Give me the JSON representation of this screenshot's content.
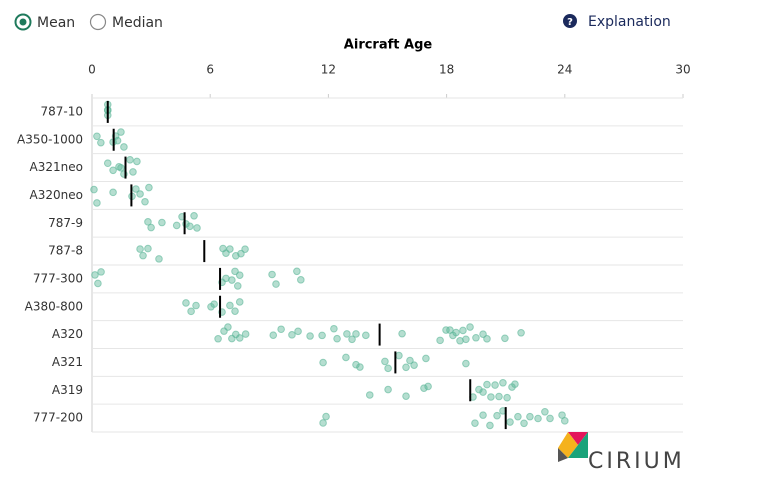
{
  "controls": {
    "options": [
      "Mean",
      "Median"
    ],
    "selected": "Mean",
    "explanation": "Explanation"
  },
  "logo": "CIRIUM",
  "chart_data": {
    "type": "strip",
    "x_label": "Aircraft Age",
    "xlim": [
      0,
      30
    ],
    "xticks": [
      0,
      6,
      12,
      18,
      24,
      30
    ],
    "grid": true,
    "color": "#5bb597",
    "mean_color": "#000000",
    "categories": [
      "787-10",
      "A350-1000",
      "A321neo",
      "A320neo",
      "787-9",
      "787-8",
      "777-300",
      "A380-800",
      "A320",
      "A321",
      "A319",
      "777-200"
    ],
    "means": [
      0.8,
      1.1,
      1.7,
      2.0,
      4.7,
      5.7,
      6.5,
      6.5,
      14.6,
      15.4,
      19.2,
      21.0
    ],
    "points": [
      [
        0.8,
        0.8,
        0.8,
        0.8
      ],
      [
        0.25,
        0.45,
        1.07,
        1.2,
        1.3,
        1.47,
        1.62
      ],
      [
        0.8,
        1.07,
        1.37,
        1.47,
        1.62,
        1.93,
        2.08,
        2.28
      ],
      [
        0.1,
        0.25,
        1.07,
        2.03,
        2.23,
        2.44,
        2.69,
        2.89
      ],
      [
        2.84,
        3.0,
        3.55,
        4.3,
        4.57,
        4.77,
        4.97,
        5.18,
        5.33
      ],
      [
        2.44,
        2.59,
        2.84,
        3.4,
        6.65,
        6.8,
        7.0,
        7.3,
        7.56,
        7.77
      ],
      [
        0.15,
        0.3,
        0.46,
        6.6,
        6.8,
        7.1,
        7.26,
        7.4,
        7.5,
        9.14,
        9.34,
        10.4,
        10.6
      ],
      [
        4.77,
        5.03,
        5.28,
        6.04,
        6.2,
        6.6,
        7.0,
        7.26,
        7.5
      ],
      [
        6.4,
        6.7,
        6.9,
        7.1,
        7.3,
        7.5,
        7.8,
        9.2,
        9.6,
        10.15,
        10.46,
        11.07,
        11.68,
        12.28,
        12.44,
        12.94,
        13.2,
        13.4,
        13.9,
        15.74,
        17.67,
        17.97,
        18.17,
        18.32,
        18.48,
        18.68,
        18.83,
        18.98,
        19.19,
        19.49,
        19.85,
        20.05,
        20.96,
        21.78
      ],
      [
        11.73,
        12.89,
        13.4,
        13.6,
        14.87,
        15.03,
        15.58,
        15.94,
        16.14,
        16.35,
        16.95,
        18.98
      ],
      [
        14.1,
        15.03,
        15.94,
        16.85,
        17.06,
        19.34,
        19.64,
        19.85,
        20.05,
        20.25,
        20.46,
        20.66,
        20.86,
        21.07,
        21.32,
        21.47
      ],
      [
        11.73,
        11.88,
        19.44,
        19.85,
        20.2,
        20.56,
        20.86,
        21.22,
        21.62,
        21.93,
        22.23,
        22.64,
        22.99,
        23.25,
        23.86,
        24.0
      ]
    ]
  }
}
